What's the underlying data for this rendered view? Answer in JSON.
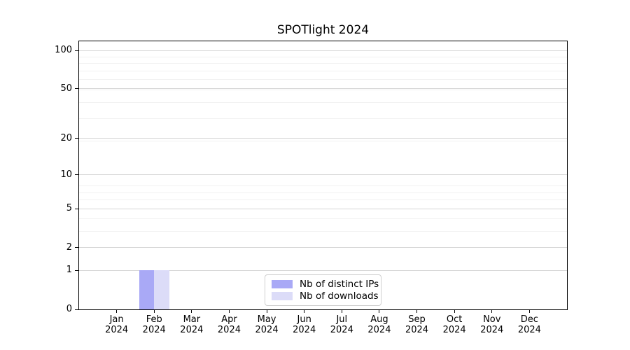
{
  "chart_data": {
    "type": "bar",
    "title": "SPOTlight 2024",
    "categories": [
      "Jan",
      "Feb",
      "Mar",
      "Apr",
      "May",
      "Jun",
      "Jul",
      "Aug",
      "Sep",
      "Oct",
      "Nov",
      "Dec"
    ],
    "xtick_year": "2024",
    "series": [
      {
        "name": "Nb of distinct IPs",
        "color": "#a9a9f6",
        "values": [
          0,
          1,
          0,
          0,
          0,
          0,
          0,
          0,
          0,
          0,
          0,
          0
        ]
      },
      {
        "name": "Nb of downloads",
        "color": "#dcdcf8",
        "values": [
          0,
          1,
          0,
          0,
          0,
          0,
          0,
          0,
          0,
          0,
          0,
          0
        ]
      }
    ],
    "yscale": "log1p",
    "yticks": [
      0,
      1,
      2,
      5,
      10,
      20,
      50,
      100
    ],
    "ylim": [
      0,
      100
    ],
    "xlabel": "",
    "ylabel": "",
    "grid": true,
    "legend_position": "lower center"
  }
}
